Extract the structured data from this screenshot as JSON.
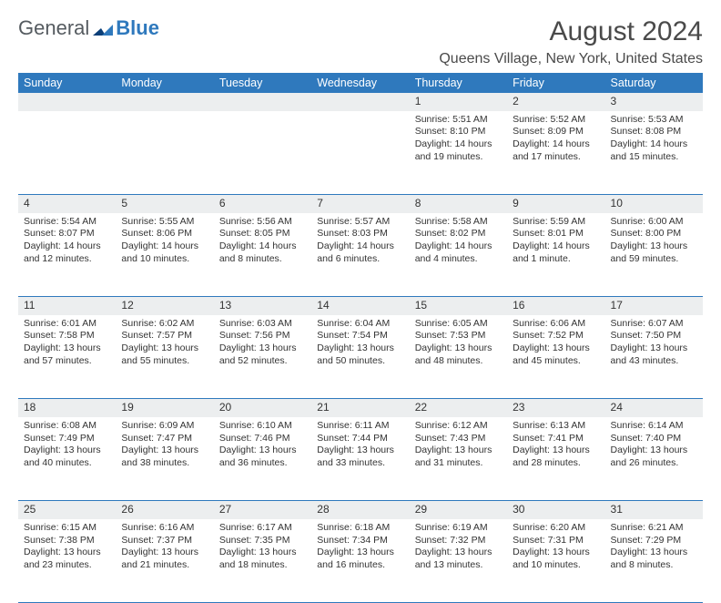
{
  "brand": {
    "part1": "General",
    "part2": "Blue"
  },
  "title": "August 2024",
  "location": "Queens Village, New York, United States",
  "colors": {
    "header_bg": "#2f79bd",
    "header_fg": "#ffffff",
    "stripe_bg": "#eceeef",
    "rule": "#2f79bd"
  },
  "dayHeaders": [
    "Sunday",
    "Monday",
    "Tuesday",
    "Wednesday",
    "Thursday",
    "Friday",
    "Saturday"
  ],
  "weeks": [
    [
      null,
      null,
      null,
      null,
      {
        "n": "1",
        "sr": "5:51 AM",
        "ss": "8:10 PM",
        "dl": "14 hours and 19 minutes."
      },
      {
        "n": "2",
        "sr": "5:52 AM",
        "ss": "8:09 PM",
        "dl": "14 hours and 17 minutes."
      },
      {
        "n": "3",
        "sr": "5:53 AM",
        "ss": "8:08 PM",
        "dl": "14 hours and 15 minutes."
      }
    ],
    [
      {
        "n": "4",
        "sr": "5:54 AM",
        "ss": "8:07 PM",
        "dl": "14 hours and 12 minutes."
      },
      {
        "n": "5",
        "sr": "5:55 AM",
        "ss": "8:06 PM",
        "dl": "14 hours and 10 minutes."
      },
      {
        "n": "6",
        "sr": "5:56 AM",
        "ss": "8:05 PM",
        "dl": "14 hours and 8 minutes."
      },
      {
        "n": "7",
        "sr": "5:57 AM",
        "ss": "8:03 PM",
        "dl": "14 hours and 6 minutes."
      },
      {
        "n": "8",
        "sr": "5:58 AM",
        "ss": "8:02 PM",
        "dl": "14 hours and 4 minutes."
      },
      {
        "n": "9",
        "sr": "5:59 AM",
        "ss": "8:01 PM",
        "dl": "14 hours and 1 minute."
      },
      {
        "n": "10",
        "sr": "6:00 AM",
        "ss": "8:00 PM",
        "dl": "13 hours and 59 minutes."
      }
    ],
    [
      {
        "n": "11",
        "sr": "6:01 AM",
        "ss": "7:58 PM",
        "dl": "13 hours and 57 minutes."
      },
      {
        "n": "12",
        "sr": "6:02 AM",
        "ss": "7:57 PM",
        "dl": "13 hours and 55 minutes."
      },
      {
        "n": "13",
        "sr": "6:03 AM",
        "ss": "7:56 PM",
        "dl": "13 hours and 52 minutes."
      },
      {
        "n": "14",
        "sr": "6:04 AM",
        "ss": "7:54 PM",
        "dl": "13 hours and 50 minutes."
      },
      {
        "n": "15",
        "sr": "6:05 AM",
        "ss": "7:53 PM",
        "dl": "13 hours and 48 minutes."
      },
      {
        "n": "16",
        "sr": "6:06 AM",
        "ss": "7:52 PM",
        "dl": "13 hours and 45 minutes."
      },
      {
        "n": "17",
        "sr": "6:07 AM",
        "ss": "7:50 PM",
        "dl": "13 hours and 43 minutes."
      }
    ],
    [
      {
        "n": "18",
        "sr": "6:08 AM",
        "ss": "7:49 PM",
        "dl": "13 hours and 40 minutes."
      },
      {
        "n": "19",
        "sr": "6:09 AM",
        "ss": "7:47 PM",
        "dl": "13 hours and 38 minutes."
      },
      {
        "n": "20",
        "sr": "6:10 AM",
        "ss": "7:46 PM",
        "dl": "13 hours and 36 minutes."
      },
      {
        "n": "21",
        "sr": "6:11 AM",
        "ss": "7:44 PM",
        "dl": "13 hours and 33 minutes."
      },
      {
        "n": "22",
        "sr": "6:12 AM",
        "ss": "7:43 PM",
        "dl": "13 hours and 31 minutes."
      },
      {
        "n": "23",
        "sr": "6:13 AM",
        "ss": "7:41 PM",
        "dl": "13 hours and 28 minutes."
      },
      {
        "n": "24",
        "sr": "6:14 AM",
        "ss": "7:40 PM",
        "dl": "13 hours and 26 minutes."
      }
    ],
    [
      {
        "n": "25",
        "sr": "6:15 AM",
        "ss": "7:38 PM",
        "dl": "13 hours and 23 minutes."
      },
      {
        "n": "26",
        "sr": "6:16 AM",
        "ss": "7:37 PM",
        "dl": "13 hours and 21 minutes."
      },
      {
        "n": "27",
        "sr": "6:17 AM",
        "ss": "7:35 PM",
        "dl": "13 hours and 18 minutes."
      },
      {
        "n": "28",
        "sr": "6:18 AM",
        "ss": "7:34 PM",
        "dl": "13 hours and 16 minutes."
      },
      {
        "n": "29",
        "sr": "6:19 AM",
        "ss": "7:32 PM",
        "dl": "13 hours and 13 minutes."
      },
      {
        "n": "30",
        "sr": "6:20 AM",
        "ss": "7:31 PM",
        "dl": "13 hours and 10 minutes."
      },
      {
        "n": "31",
        "sr": "6:21 AM",
        "ss": "7:29 PM",
        "dl": "13 hours and 8 minutes."
      }
    ]
  ],
  "labels": {
    "sunrise": "Sunrise: ",
    "sunset": "Sunset: ",
    "daylight": "Daylight: "
  }
}
